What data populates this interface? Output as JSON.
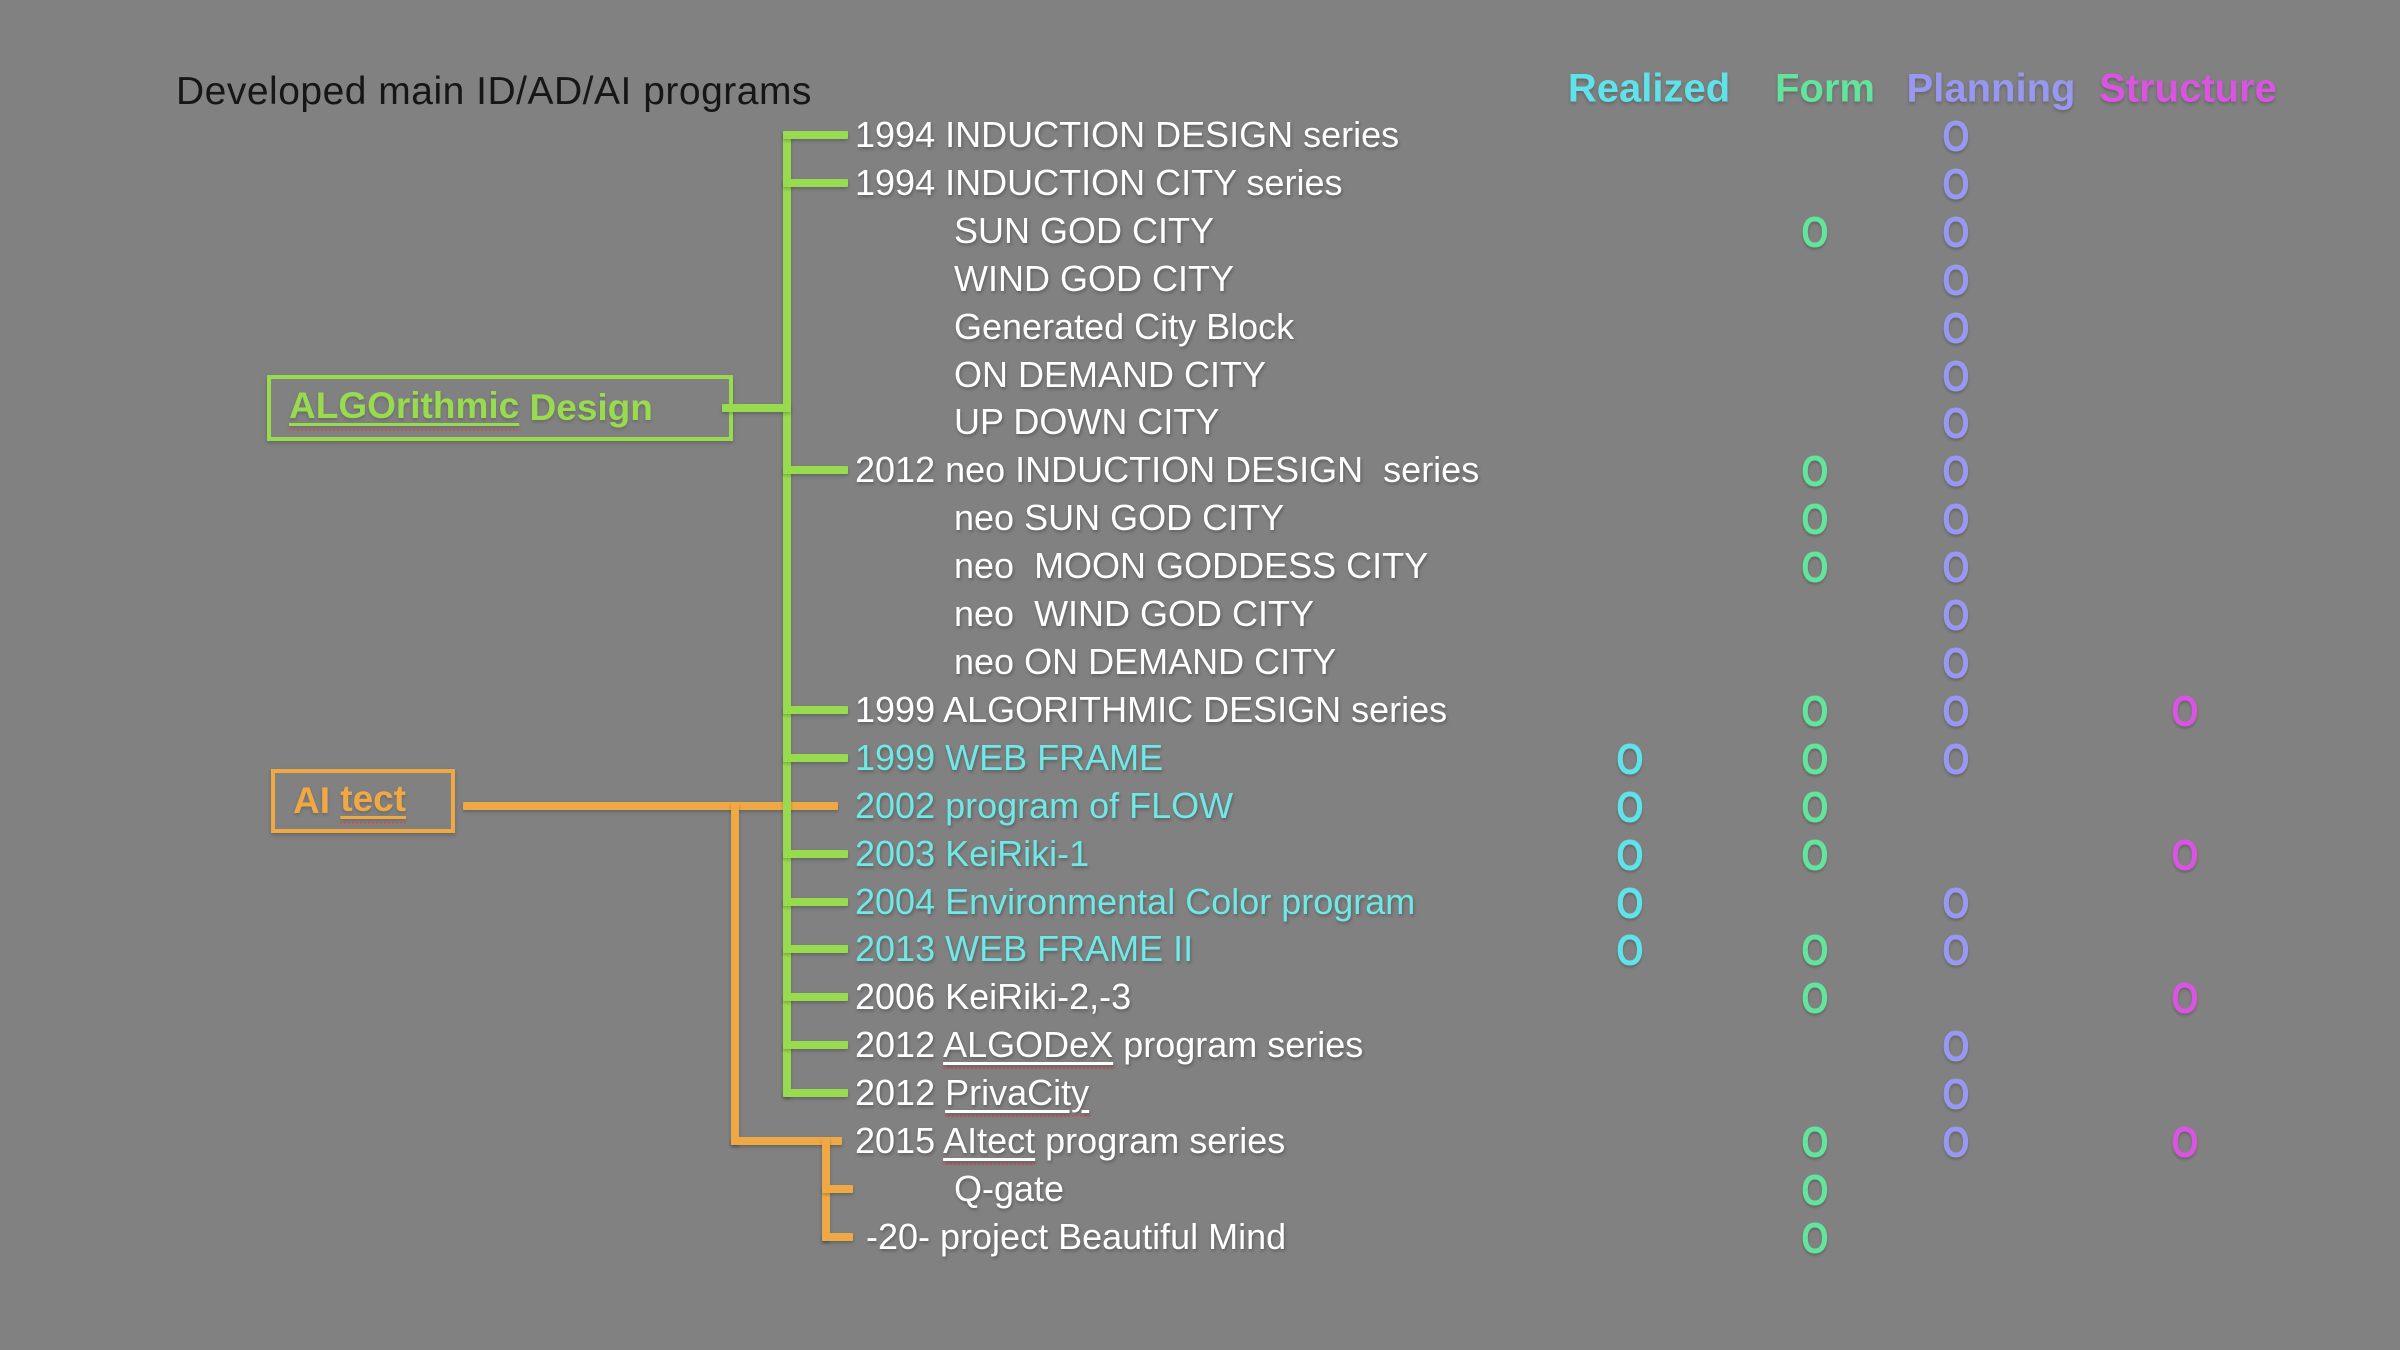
{
  "title": "Developed main ID/AD/AI programs",
  "marker_glyph": "O",
  "palette": {
    "background": "#818181",
    "tree_green": "#99DB4F",
    "branch_orange": "#F0A844",
    "row_white": "#FFFFFF",
    "row_cyan": "#6FE8E6"
  },
  "columns": [
    {
      "key": "realized",
      "label": "Realized",
      "color": "#5FE3E8"
    },
    {
      "key": "form",
      "label": "Form",
      "color": "#63E39B"
    },
    {
      "key": "planning",
      "label": "Planning",
      "color": "#9898F0"
    },
    {
      "key": "structure",
      "label": "Structure",
      "color": "#D855E0"
    }
  ],
  "boxes": {
    "algo": {
      "label_underlined": "ALGOrithmic",
      "label_rest": " Design",
      "color": "#99DB4F"
    },
    "aitect": {
      "label_pre": "AI ",
      "label_underlined": "tect",
      "color": "#F0A844"
    }
  },
  "tree": {
    "rows": [
      {
        "label_pre": "1994 INDUCTION DESIGN series",
        "color": "white",
        "indent": "main",
        "branch": "algo",
        "realized": false,
        "form": false,
        "planning": true,
        "structure": false
      },
      {
        "label_pre": "1994 INDUCTION CITY series",
        "color": "white",
        "indent": "main",
        "branch": "algo",
        "realized": false,
        "form": false,
        "planning": true,
        "structure": false
      },
      {
        "label_pre": "SUN GOD CITY",
        "color": "white",
        "indent": "sub",
        "branch": null,
        "realized": false,
        "form": true,
        "planning": true,
        "structure": false
      },
      {
        "label_pre": "WIND GOD CITY",
        "color": "white",
        "indent": "sub",
        "branch": null,
        "realized": false,
        "form": false,
        "planning": true,
        "structure": false
      },
      {
        "label_pre": "Generated City Block",
        "color": "white",
        "indent": "sub",
        "branch": null,
        "realized": false,
        "form": false,
        "planning": true,
        "structure": false
      },
      {
        "label_pre": "ON DEMAND CITY",
        "color": "white",
        "indent": "sub",
        "branch": null,
        "realized": false,
        "form": false,
        "planning": true,
        "structure": false
      },
      {
        "label_pre": "UP DOWN CITY",
        "color": "white",
        "indent": "sub",
        "branch": null,
        "realized": false,
        "form": false,
        "planning": true,
        "structure": false
      },
      {
        "label_pre": "2012 neo INDUCTION DESIGN  series",
        "color": "white",
        "indent": "main",
        "branch": "algo",
        "realized": false,
        "form": true,
        "planning": true,
        "structure": false
      },
      {
        "label_pre": "neo SUN GOD CITY",
        "color": "white",
        "indent": "sub",
        "branch": null,
        "realized": false,
        "form": true,
        "planning": true,
        "structure": false
      },
      {
        "label_pre": "neo  MOON GODDESS CITY",
        "color": "white",
        "indent": "sub",
        "branch": null,
        "realized": false,
        "form": true,
        "planning": true,
        "structure": false
      },
      {
        "label_pre": "neo  WIND GOD CITY",
        "color": "white",
        "indent": "sub",
        "branch": null,
        "realized": false,
        "form": false,
        "planning": true,
        "structure": false
      },
      {
        "label_pre": "neo ON DEMAND CITY",
        "color": "white",
        "indent": "sub",
        "branch": null,
        "realized": false,
        "form": false,
        "planning": true,
        "structure": false
      },
      {
        "label_pre": "1999 ALGORITHMIC DESIGN series",
        "color": "white",
        "indent": "main",
        "branch": "algo",
        "realized": false,
        "form": true,
        "planning": true,
        "structure": true
      },
      {
        "label_pre": "1999 WEB FRAME",
        "color": "cyan",
        "indent": "main",
        "branch": "algo",
        "realized": true,
        "form": true,
        "planning": true,
        "structure": false
      },
      {
        "label_pre": "2002 program of FLOW",
        "color": "cyan",
        "indent": "main",
        "branch": "aitect",
        "realized": true,
        "form": true,
        "planning": false,
        "structure": false
      },
      {
        "label_pre": "2003 KeiRiki-1",
        "color": "cyan",
        "indent": "main",
        "branch": "algo",
        "realized": true,
        "form": true,
        "planning": false,
        "structure": true
      },
      {
        "label_pre": "2004 Environmental Color program",
        "color": "cyan",
        "indent": "main",
        "branch": "algo",
        "realized": true,
        "form": false,
        "planning": true,
        "structure": false
      },
      {
        "label_pre": "2013 WEB FRAME II",
        "color": "cyan",
        "indent": "main",
        "branch": "algo",
        "realized": true,
        "form": true,
        "planning": true,
        "structure": false
      },
      {
        "label_pre": "2006 KeiRiki-2,-3",
        "color": "white",
        "indent": "main",
        "branch": "algo",
        "realized": false,
        "form": true,
        "planning": false,
        "structure": true
      },
      {
        "label_pre": "2012 ",
        "label_u": "ALGODeX",
        "label_post": " program series",
        "color": "white",
        "indent": "main",
        "branch": "algo",
        "realized": false,
        "form": false,
        "planning": true,
        "structure": false
      },
      {
        "label_pre": "2012 ",
        "label_u": "PrivaCity",
        "color": "white",
        "indent": "main",
        "branch": "algo",
        "realized": false,
        "form": false,
        "planning": true,
        "structure": false
      },
      {
        "label_pre": "2015 ",
        "label_u": "AItect",
        "label_post": " program series",
        "color": "white",
        "indent": "main",
        "branch": "aitect",
        "realized": false,
        "form": true,
        "planning": true,
        "structure": true
      },
      {
        "label_pre": "Q-gate",
        "color": "white",
        "indent": "sub",
        "branch": "aitect",
        "realized": false,
        "form": true,
        "planning": false,
        "structure": false
      },
      {
        "label_pre": "-20- project Beautiful Mind",
        "color": "white",
        "indent": "proj",
        "branch": "aitect",
        "realized": false,
        "form": true,
        "planning": false,
        "structure": false
      }
    ]
  }
}
